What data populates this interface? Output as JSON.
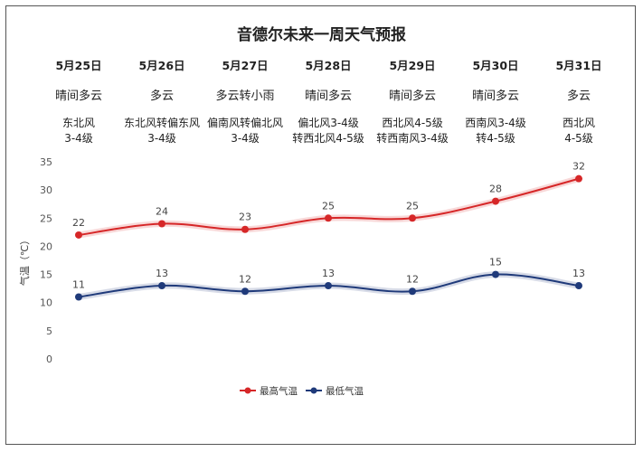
{
  "chart_data": {
    "type": "line",
    "title": "音德尔未来一周天气预报",
    "categories": [
      "5月25日",
      "5月26日",
      "5月27日",
      "5月28日",
      "5月29日",
      "5月30日",
      "5月31日"
    ],
    "weather": [
      "晴间多云",
      "多云",
      "多云转小雨",
      "晴间多云",
      "晴间多云",
      "晴间多云",
      "多云"
    ],
    "wind": [
      [
        "东北风",
        "3-4级"
      ],
      [
        "东北风转偏东风",
        "3-4级"
      ],
      [
        "偏南风转偏北风",
        "3-4级"
      ],
      [
        "偏北风3-4级",
        "转西北风4-5级"
      ],
      [
        "西北风4-5级",
        "转西南风3-4级"
      ],
      [
        "西南风3-4级",
        "转4-5级"
      ],
      [
        "西北风",
        "4-5级"
      ]
    ],
    "ylabel": "气温（℃）",
    "ylim": [
      0,
      35
    ],
    "yticks": [
      0,
      5,
      10,
      15,
      20,
      25,
      30,
      35
    ],
    "legend_position": "bottom",
    "series": [
      {
        "name": "最高气温",
        "color": "#d62728",
        "values": [
          22,
          24,
          23,
          25,
          25,
          28,
          32
        ]
      },
      {
        "name": "最低气温",
        "color": "#1f3a7a",
        "values": [
          11,
          13,
          12,
          13,
          12,
          15,
          13
        ]
      }
    ]
  }
}
